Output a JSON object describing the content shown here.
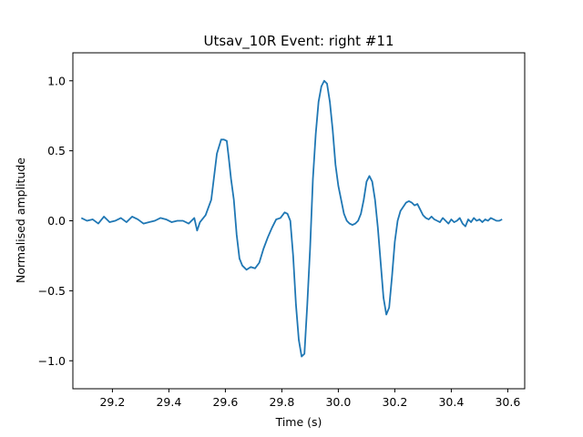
{
  "chart_data": {
    "type": "line",
    "title": "Utsav_10R Event: right #11",
    "xlabel": "Time (s)",
    "ylabel": "Normalised amplitude",
    "xlim": [
      29.06,
      30.66
    ],
    "ylim": [
      -1.2,
      1.2
    ],
    "xticks": [
      29.2,
      29.4,
      29.6,
      29.8,
      30.0,
      30.2,
      30.4,
      30.6
    ],
    "xtick_labels": [
      "29.2",
      "29.4",
      "29.6",
      "29.8",
      "30.0",
      "30.2",
      "30.4",
      "30.6"
    ],
    "yticks": [
      -1.0,
      -0.5,
      0.0,
      0.5,
      1.0
    ],
    "ytick_labels": [
      "−1.0",
      "−0.5",
      "0.0",
      "0.5",
      "1.0"
    ],
    "grid": false,
    "line_color": "#1f77b4",
    "series": [
      {
        "x": [
          29.09,
          29.11,
          29.13,
          29.15,
          29.17,
          29.19,
          29.21,
          29.23,
          29.25,
          29.27,
          29.29,
          29.31,
          29.33,
          29.35,
          29.37,
          29.39,
          29.41,
          29.43,
          29.45,
          29.47,
          29.49,
          29.5,
          29.51,
          29.53,
          29.55,
          29.57,
          29.585,
          29.595,
          29.605,
          29.612,
          29.62,
          29.63,
          29.64,
          29.65,
          29.66,
          29.675,
          29.69,
          29.705,
          29.72,
          29.735,
          29.75,
          29.765,
          29.78,
          29.795,
          29.81,
          29.82,
          29.83,
          29.84,
          29.85,
          29.86,
          29.87,
          29.88,
          29.89,
          29.9,
          29.91,
          29.92,
          29.93,
          29.94,
          29.95,
          29.96,
          29.97,
          29.98,
          29.99,
          30.0,
          30.01,
          30.02,
          30.03,
          30.04,
          30.05,
          30.06,
          30.07,
          30.08,
          30.09,
          30.1,
          30.11,
          30.12,
          30.13,
          30.14,
          30.15,
          30.16,
          30.17,
          30.18,
          30.19,
          30.2,
          30.21,
          30.22,
          30.23,
          30.24,
          30.25,
          30.26,
          30.27,
          30.28,
          30.29,
          30.3,
          30.31,
          30.32,
          30.33,
          30.34,
          30.35,
          30.36,
          30.37,
          30.38,
          30.39,
          30.4,
          30.41,
          30.42,
          30.43,
          30.44,
          30.45,
          30.46,
          30.47,
          30.48,
          30.49,
          30.5,
          30.51,
          30.52,
          30.53,
          30.54,
          30.55,
          30.56,
          30.57,
          30.58
        ],
        "y": [
          0.02,
          0.0,
          0.01,
          -0.02,
          0.03,
          -0.01,
          0.0,
          0.02,
          -0.01,
          0.03,
          0.01,
          -0.02,
          -0.01,
          0.0,
          0.02,
          0.01,
          -0.01,
          0.0,
          0.0,
          -0.02,
          0.02,
          -0.07,
          -0.01,
          0.04,
          0.15,
          0.48,
          0.58,
          0.58,
          0.57,
          0.45,
          0.3,
          0.15,
          -0.1,
          -0.27,
          -0.32,
          -0.35,
          -0.33,
          -0.34,
          -0.3,
          -0.2,
          -0.12,
          -0.05,
          0.01,
          0.02,
          0.06,
          0.05,
          0.0,
          -0.25,
          -0.6,
          -0.85,
          -0.97,
          -0.95,
          -0.6,
          -0.2,
          0.3,
          0.62,
          0.85,
          0.96,
          1.0,
          0.98,
          0.85,
          0.65,
          0.4,
          0.25,
          0.15,
          0.05,
          0.0,
          -0.02,
          -0.03,
          -0.02,
          0.0,
          0.05,
          0.15,
          0.28,
          0.32,
          0.28,
          0.15,
          -0.05,
          -0.3,
          -0.55,
          -0.67,
          -0.62,
          -0.4,
          -0.15,
          0.0,
          0.07,
          0.1,
          0.13,
          0.14,
          0.13,
          0.11,
          0.12,
          0.08,
          0.04,
          0.02,
          0.01,
          0.03,
          0.01,
          0.0,
          -0.01,
          0.02,
          0.0,
          -0.02,
          0.01,
          -0.01,
          0.0,
          0.02,
          -0.02,
          -0.04,
          0.01,
          -0.01,
          0.02,
          0.0,
          0.01,
          -0.01,
          0.01,
          0.0,
          0.02,
          0.01,
          0.0,
          0.0,
          0.01
        ]
      }
    ]
  }
}
